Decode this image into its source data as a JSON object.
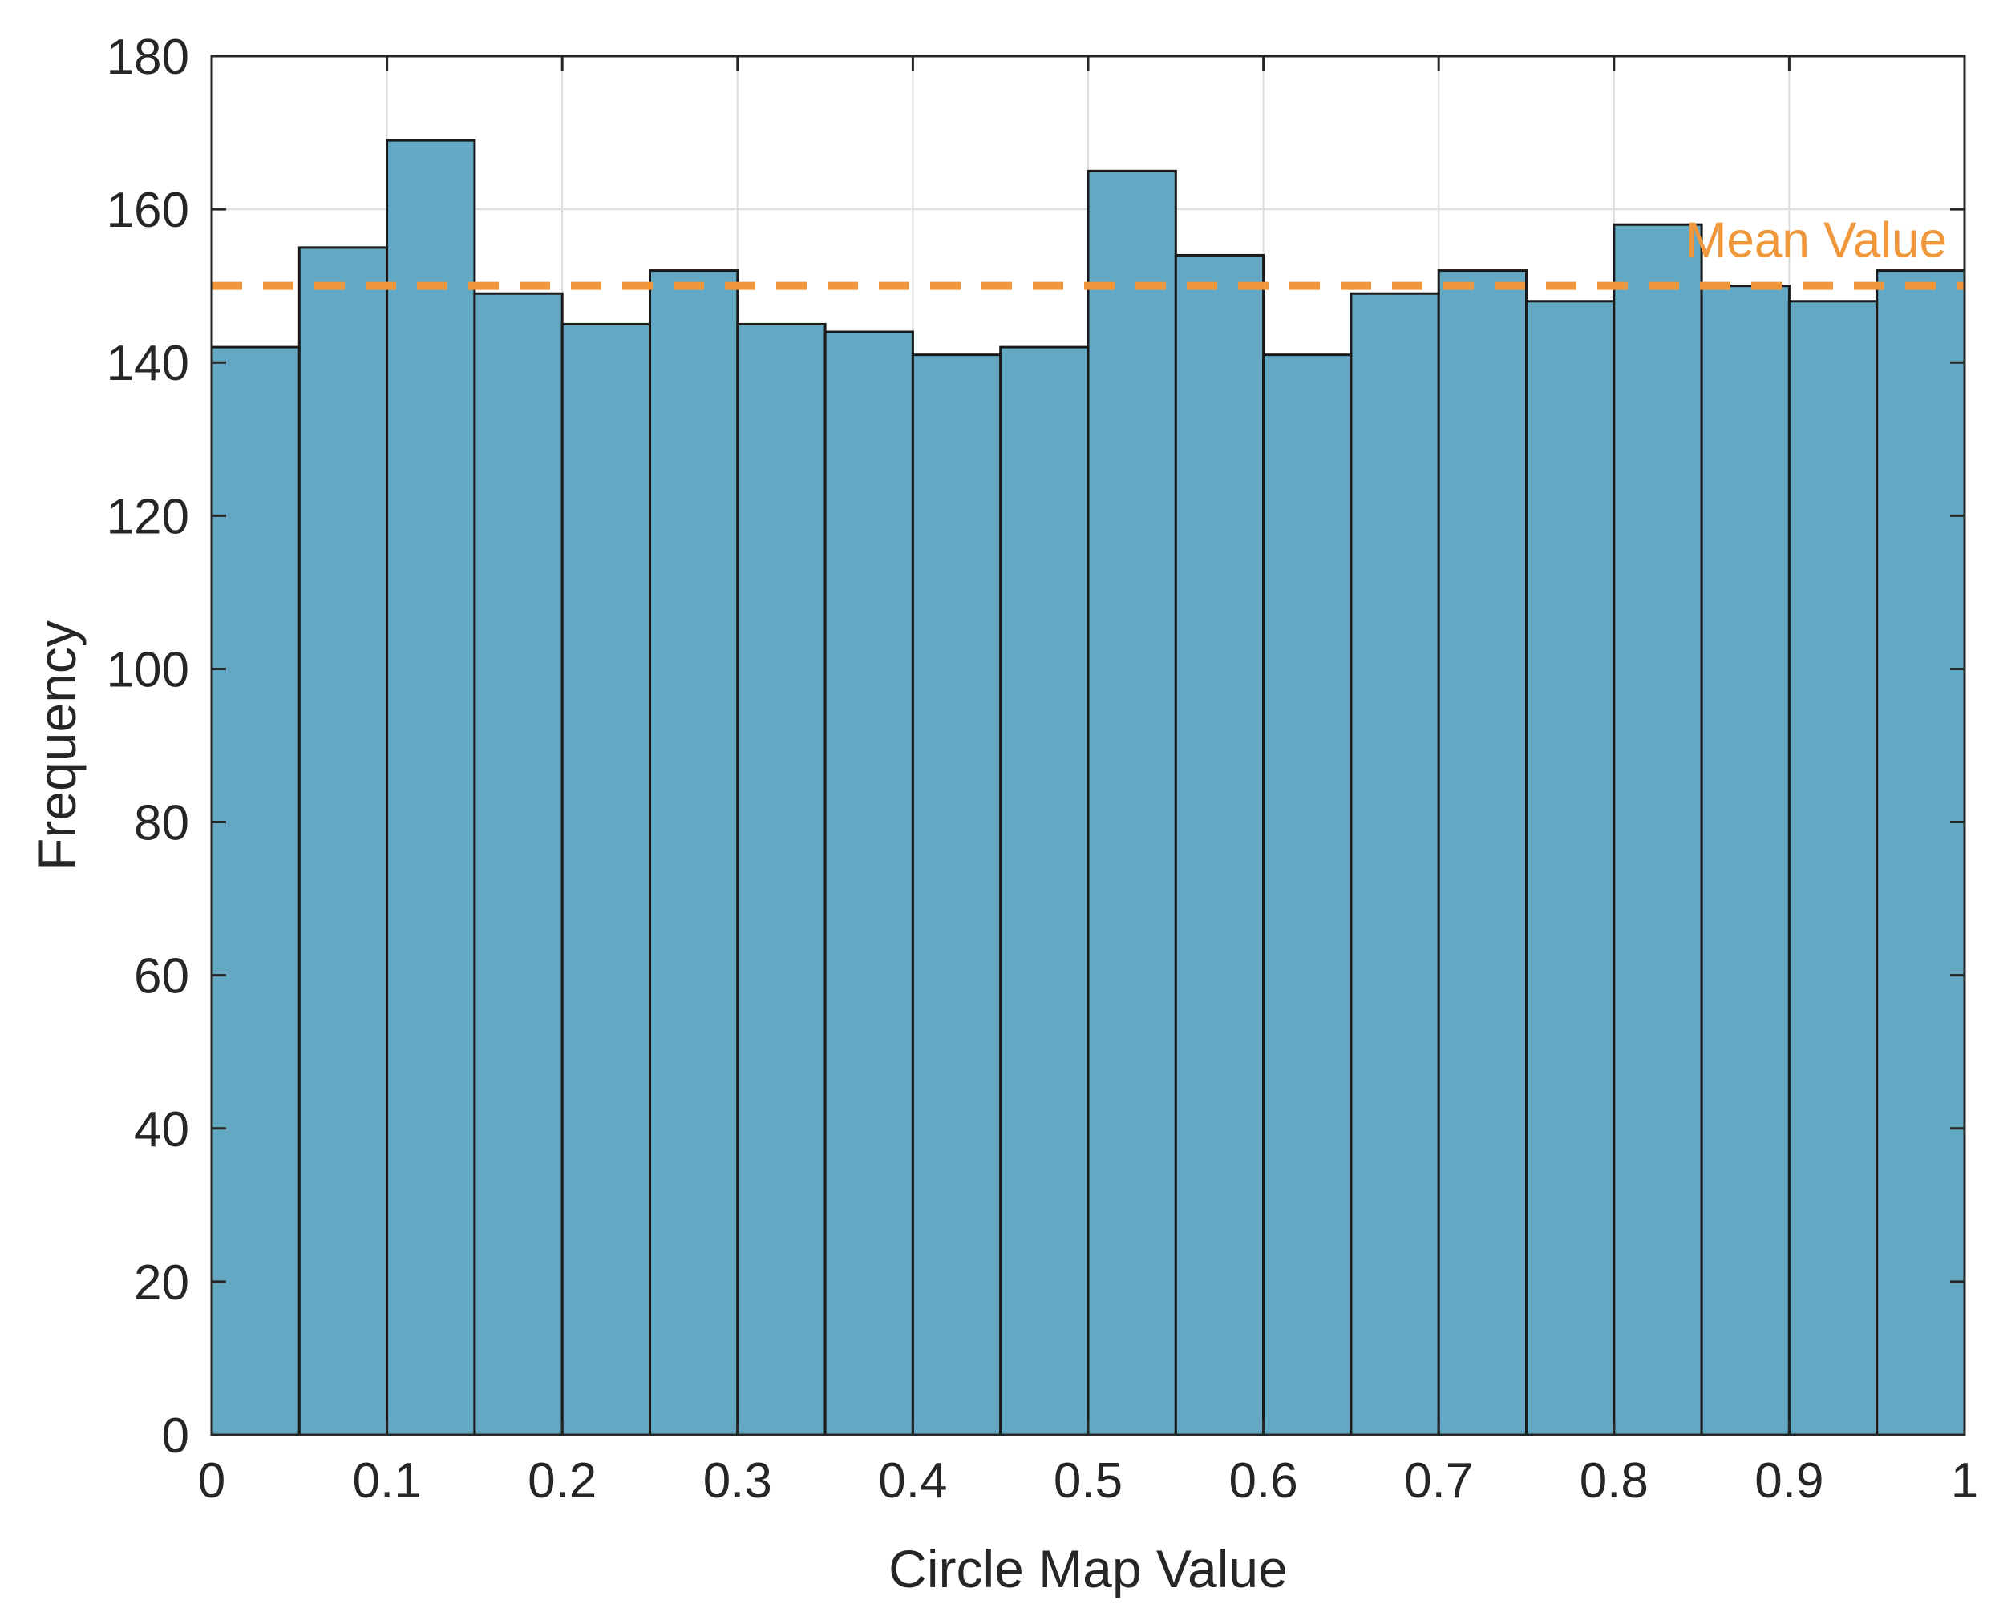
{
  "chart_data": {
    "type": "bar",
    "xlabel": "Circle Map Value",
    "ylabel": "Frequency",
    "xlim": [
      0,
      1
    ],
    "ylim": [
      0,
      180
    ],
    "xticks": [
      "0",
      "0.1",
      "0.2",
      "0.3",
      "0.4",
      "0.5",
      "0.6",
      "0.7",
      "0.8",
      "0.9",
      "1"
    ],
    "yticks": [
      "0",
      "20",
      "40",
      "60",
      "80",
      "100",
      "120",
      "140",
      "160",
      "180"
    ],
    "bin_edges": [
      0,
      0.05,
      0.1,
      0.15,
      0.2,
      0.25,
      0.3,
      0.35,
      0.4,
      0.45,
      0.5,
      0.55,
      0.6,
      0.65,
      0.7,
      0.75,
      0.8,
      0.85,
      0.9,
      0.95,
      1
    ],
    "values": [
      142,
      155,
      169,
      149,
      145,
      152,
      145,
      144,
      141,
      142,
      165,
      154,
      141,
      149,
      152,
      148,
      158,
      150,
      148,
      152
    ],
    "mean_value": 150,
    "annotation": "Mean Value",
    "grid": true,
    "colors": {
      "bar_fill": "#64a8c3",
      "bar_edge": "#1a1a1a",
      "mean_line": "#f0973c",
      "grid": "#dcdcdc",
      "axis": "#262626"
    }
  }
}
